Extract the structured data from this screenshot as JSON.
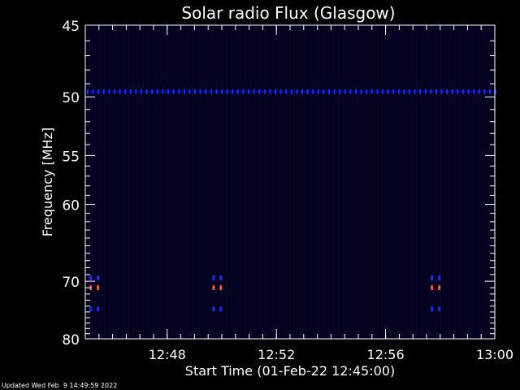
{
  "chart_data": {
    "type": "heatmap",
    "title": "Solar radio Flux (Glasgow)",
    "xlabel": "Start Time (01-Feb-22 12:45:00)",
    "ylabel": "Frequency [MHz]",
    "footer": "Updated Wed Feb  9 14:49:59 2022",
    "x_ticks": [
      "12:48",
      "12:52",
      "12:56",
      "13:00"
    ],
    "y_ticks": [
      "45",
      "50",
      "55",
      "60",
      "70",
      "80"
    ],
    "xlim": [
      "12:45",
      "13:00"
    ],
    "ylim": [
      45,
      80
    ],
    "y_scale": "reciprocal",
    "colors": {
      "background": "#000000",
      "plot": "#02021a",
      "axes": "#ffffff",
      "blue": "#1a2aff",
      "red": "#ff3a1a",
      "hot": "#ffcfa0"
    },
    "features": [
      {
        "kind": "band",
        "freq_mhz": 49.6,
        "from": "12:45",
        "to": "13:00",
        "intensity": "blue"
      },
      {
        "kind": "burst",
        "time": "12:45:20",
        "freqs_mhz": [
          69.5,
          71.0,
          74.5
        ]
      },
      {
        "kind": "burst",
        "time": "12:49:50",
        "freqs_mhz": [
          69.5,
          71.0,
          74.5
        ]
      },
      {
        "kind": "burst",
        "time": "12:57:50",
        "freqs_mhz": [
          69.5,
          71.0,
          74.5
        ]
      }
    ]
  }
}
